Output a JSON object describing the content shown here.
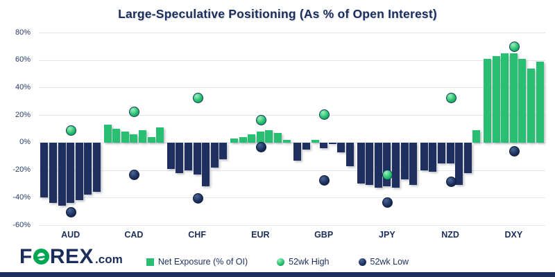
{
  "title": "Large-Speculative Positioning (As % of Open Interest)",
  "colors": {
    "navy": "#1f3060",
    "green": "#29bf72",
    "grid": "#dfe6ee",
    "text": "#1b2d5b",
    "logo_green": "#00a651"
  },
  "chart_data": {
    "type": "bar",
    "title": "Large-Speculative Positioning (As % of Open Interest)",
    "xlabel": "",
    "ylabel": "",
    "ylim": [
      -60,
      80
    ],
    "ytick_step": 20,
    "ytick_labels": [
      "80%",
      "60%",
      "40%",
      "20%",
      "0%",
      "-20%",
      "-40%",
      "-60%"
    ],
    "grid": true,
    "legend_position": "bottom",
    "categories": [
      "AUD",
      "CAD",
      "CHF",
      "EUR",
      "GBP",
      "JPY",
      "NZD",
      "DXY"
    ],
    "series_note": "7 net-exposure bars per currency; dots mark 52wk high/low",
    "groups": [
      {
        "label": "AUD",
        "net_exposure": [
          -40,
          -44,
          -46,
          -44,
          -42,
          -38,
          -36
        ],
        "high": 9,
        "low": -50
      },
      {
        "label": "CAD",
        "net_exposure": [
          13,
          10,
          8,
          6,
          9,
          4,
          11
        ],
        "high": 23,
        "low": -23
      },
      {
        "label": "CHF",
        "net_exposure": [
          -19,
          -22,
          -20,
          -23,
          -32,
          -18,
          -12
        ],
        "high": 33,
        "low": -40
      },
      {
        "label": "EUR",
        "net_exposure": [
          3,
          4,
          6,
          8,
          9,
          7,
          2
        ],
        "high": 17,
        "low": -3
      },
      {
        "label": "GBP",
        "net_exposure": [
          -13,
          -5,
          2,
          -4,
          -1,
          -7,
          -17
        ],
        "high": 21,
        "low": -27
      },
      {
        "label": "JPY",
        "net_exposure": [
          -30,
          -31,
          -33,
          -32,
          -33,
          -27,
          -31
        ],
        "high": -23,
        "low": -43
      },
      {
        "label": "NZD",
        "net_exposure": [
          -20,
          -21,
          -15,
          -15,
          -31,
          -22,
          9
        ],
        "high": 33,
        "low": -28
      },
      {
        "label": "DXY",
        "net_exposure": [
          61,
          63,
          65,
          65,
          61,
          54,
          59
        ],
        "high": 70,
        "low": -6
      }
    ],
    "legend": [
      {
        "label": "Net Exposure (% of OI)",
        "marker": "square",
        "color": "green"
      },
      {
        "label": "52wk High",
        "marker": "circle",
        "color": "green"
      },
      {
        "label": "52wk Low",
        "marker": "circle",
        "color": "navy"
      }
    ]
  },
  "footer": {
    "logo_text_1": "F",
    "logo_text_2": "REX",
    "logo_suffix": ".com"
  }
}
